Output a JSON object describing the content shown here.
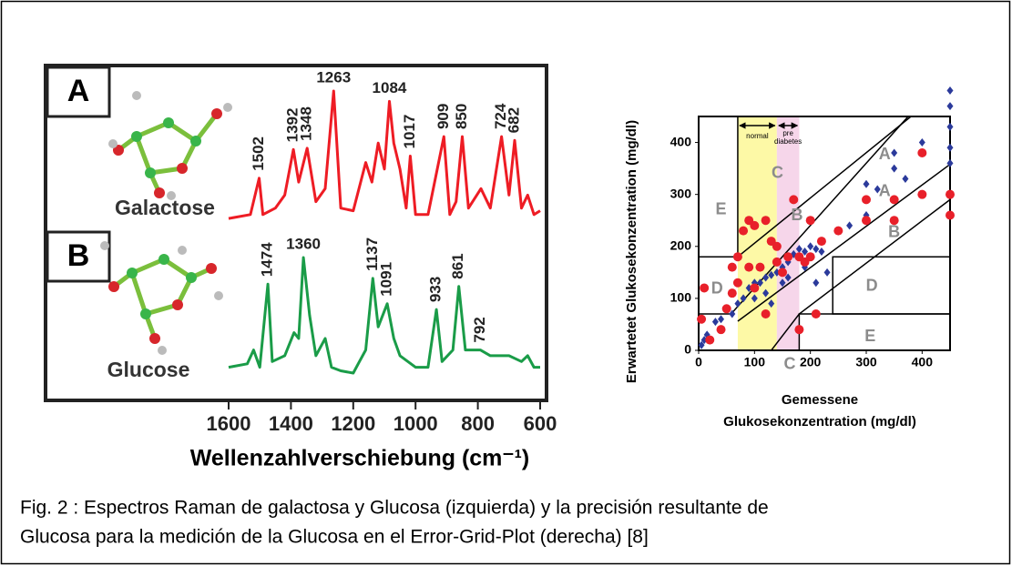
{
  "chart_data": [
    {
      "type": "line",
      "xlabel": "Wellenzahlverschiebung (cm⁻¹)",
      "xlim": [
        1600,
        600
      ],
      "xticks": [
        1600,
        1400,
        1200,
        1000,
        800,
        600
      ],
      "ylim": [
        0,
        1
      ],
      "panel_labels": [
        "A",
        "B"
      ],
      "series": [
        {
          "name": "Galactose",
          "color": "#ee1c24",
          "x": [
            1600,
            1530,
            1502,
            1490,
            1450,
            1420,
            1392,
            1375,
            1348,
            1320,
            1290,
            1263,
            1240,
            1200,
            1160,
            1140,
            1120,
            1100,
            1084,
            1070,
            1050,
            1030,
            1017,
            1000,
            960,
            909,
            890,
            870,
            850,
            830,
            790,
            760,
            724,
            700,
            682,
            660,
            640,
            620,
            600
          ],
          "values": [
            0.02,
            0.05,
            0.33,
            0.05,
            0.1,
            0.2,
            0.55,
            0.3,
            0.56,
            0.15,
            0.25,
            1.0,
            0.1,
            0.08,
            0.45,
            0.3,
            0.6,
            0.4,
            0.92,
            0.6,
            0.4,
            0.1,
            0.5,
            0.05,
            0.05,
            0.65,
            0.05,
            0.15,
            0.65,
            0.1,
            0.25,
            0.1,
            0.65,
            0.2,
            0.62,
            0.1,
            0.2,
            0.05,
            0.08
          ],
          "peaks": [
            1502,
            1392,
            1348,
            1263,
            1084,
            1017,
            909,
            850,
            724,
            682
          ]
        },
        {
          "name": "Glucose",
          "color": "#1a9c48",
          "x": [
            1600,
            1540,
            1520,
            1500,
            1474,
            1460,
            1420,
            1390,
            1375,
            1360,
            1340,
            1320,
            1290,
            1270,
            1240,
            1200,
            1180,
            1160,
            1137,
            1120,
            1091,
            1070,
            1050,
            1000,
            960,
            933,
            915,
            880,
            861,
            840,
            792,
            760,
            700,
            660,
            640,
            620,
            600
          ],
          "values": [
            0.05,
            0.08,
            0.2,
            0.05,
            0.77,
            0.1,
            0.15,
            0.35,
            0.3,
            1.0,
            0.5,
            0.15,
            0.3,
            0.05,
            0.02,
            0.0,
            0.1,
            0.2,
            0.82,
            0.4,
            0.6,
            0.3,
            0.15,
            0.05,
            0.05,
            0.55,
            0.1,
            0.2,
            0.75,
            0.2,
            0.2,
            0.15,
            0.15,
            0.1,
            0.15,
            0.05,
            0.05
          ],
          "peaks": [
            1474,
            1360,
            1137,
            1091,
            933,
            861,
            792
          ]
        }
      ]
    },
    {
      "type": "scatter",
      "xlabel": [
        "Gemessene",
        "Glukosekonzentration (mg/dl)"
      ],
      "ylabel": "Erwartetet Glukosekonzentration (mg/dl)",
      "xlim": [
        0,
        450
      ],
      "ylim": [
        0,
        450
      ],
      "xticks": [
        0,
        100,
        200,
        300,
        400
      ],
      "yticks": [
        0,
        100,
        200,
        300,
        400
      ],
      "bands": [
        {
          "label": [
            "normal"
          ],
          "from": 70,
          "to": 140,
          "color": "#fdf9a6"
        },
        {
          "label": [
            "pre",
            "diabetes"
          ],
          "from": 140,
          "to": 180,
          "color": "#f6d6ea"
        }
      ],
      "zone_lines": [
        [
          [
            70,
            450
          ],
          [
            70,
            180
          ],
          [
            0,
            180
          ]
        ],
        [
          [
            70,
            180
          ],
          [
            380,
            450
          ]
        ],
        [
          [
            0,
            70
          ],
          [
            58,
            70
          ],
          [
            375,
            450
          ]
        ],
        [
          [
            70,
            56
          ],
          [
            450,
            358
          ]
        ],
        [
          [
            130,
            0
          ],
          [
            180,
            70
          ],
          [
            450,
            290
          ]
        ],
        [
          [
            450,
            180
          ],
          [
            240,
            180
          ],
          [
            240,
            70
          ],
          [
            450,
            70
          ]
        ],
        [
          [
            180,
            0
          ],
          [
            180,
            70
          ],
          [
            450,
            70
          ]
        ]
      ],
      "zone_labels": [
        {
          "text": "E",
          "x": 40,
          "y": 270
        },
        {
          "text": "C",
          "x": 141,
          "y": 340
        },
        {
          "text": "B",
          "x": 176,
          "y": 259
        },
        {
          "text": "A",
          "x": 333,
          "y": 376
        },
        {
          "text": "A",
          "x": 333,
          "y": 305
        },
        {
          "text": "B",
          "x": 350,
          "y": 226
        },
        {
          "text": "D",
          "x": 33,
          "y": 118
        },
        {
          "text": "D",
          "x": 310,
          "y": 123
        },
        {
          "text": "C",
          "x": 163,
          "y": -28
        },
        {
          "text": "E",
          "x": 307,
          "y": 26
        }
      ],
      "series": [
        {
          "color": "#2b3a9b",
          "marker": "diamond",
          "x": [
            5,
            10,
            15,
            30,
            40,
            60,
            70,
            80,
            90,
            100,
            110,
            120,
            130,
            140,
            150,
            160,
            170,
            180,
            190,
            200,
            210,
            220,
            100,
            120,
            150,
            160,
            250,
            270,
            300,
            300,
            320,
            350,
            350,
            370,
            400,
            400,
            450,
            450,
            450,
            450,
            450,
            190,
            210,
            230,
            130
          ],
          "values": [
            10,
            20,
            30,
            55,
            60,
            70,
            90,
            100,
            120,
            130,
            130,
            140,
            145,
            150,
            160,
            170,
            185,
            195,
            190,
            200,
            195,
            190,
            100,
            110,
            130,
            140,
            230,
            240,
            260,
            320,
            310,
            350,
            380,
            330,
            400,
            300,
            500,
            470,
            430,
            390,
            360,
            160,
            130,
            150,
            90
          ]
        },
        {
          "color": "#e8202a",
          "marker": "circle",
          "x": [
            10,
            5,
            40,
            50,
            60,
            70,
            80,
            90,
            100,
            110,
            120,
            130,
            140,
            90,
            70,
            60,
            100,
            120,
            150,
            160,
            170,
            180,
            190,
            200,
            210,
            220,
            200,
            250,
            300,
            300,
            350,
            350,
            400,
            400,
            450,
            450,
            180,
            140,
            20
          ],
          "values": [
            120,
            60,
            40,
            80,
            110,
            130,
            230,
            250,
            240,
            160,
            250,
            210,
            200,
            160,
            180,
            160,
            120,
            70,
            150,
            180,
            290,
            180,
            170,
            180,
            70,
            210,
            250,
            230,
            250,
            290,
            250,
            290,
            300,
            380,
            300,
            260,
            40,
            170,
            20
          ]
        }
      ]
    }
  ],
  "caption": [
    "Fig. 2 : Espectros Raman de galactosa y Glucosa (izquierda) y la precisión resultante de",
    "Glucosa para la medición de la Glucosa en el Error-Grid-Plot (derecha) [8]"
  ]
}
